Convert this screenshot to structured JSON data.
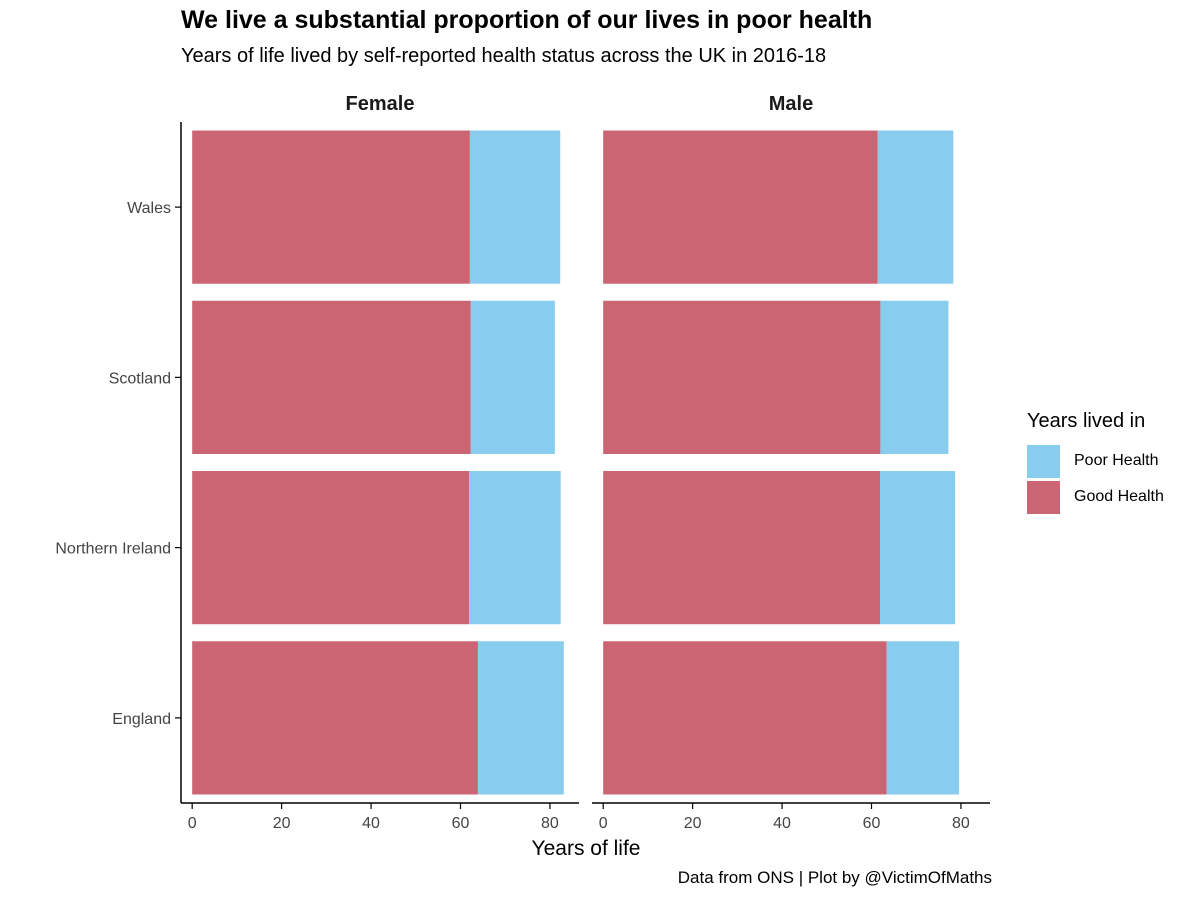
{
  "title": "We live a substantial proportion of our lives in poor health",
  "subtitle": "Years of life lived by self-reported health status across the UK in 2016-18",
  "caption": "Data from ONS | Plot by @VictimOfMaths",
  "colors": {
    "good": "#cb6574",
    "poor": "#89cdee",
    "axis": "#000000",
    "tick_label": "#444444"
  },
  "legend": {
    "title": "Years lived in",
    "position": "right",
    "items": [
      {
        "label": "Poor Health",
        "color": "#89cdee"
      },
      {
        "label": "Good Health",
        "color": "#cb6574"
      }
    ]
  },
  "chart_data": {
    "type": "bar",
    "orientation": "horizontal",
    "stacked": true,
    "xlabel": "Years of life",
    "xlim": [
      -2.5,
      86.5
    ],
    "xticks": [
      0,
      20,
      40,
      60,
      80
    ],
    "categories": [
      "Wales",
      "Scotland",
      "Northern Ireland",
      "England"
    ],
    "grid": false,
    "facets": [
      {
        "name": "Female",
        "series": [
          {
            "name": "Good Health",
            "values": [
              62.1,
              62.3,
              61.9,
              63.9
            ]
          },
          {
            "name": "Poor Health",
            "values": [
              20.2,
              18.8,
              20.5,
              19.2
            ]
          }
        ]
      },
      {
        "name": "Male",
        "series": [
          {
            "name": "Good Health",
            "values": [
              61.4,
              62.0,
              61.9,
              63.4
            ]
          },
          {
            "name": "Poor Health",
            "values": [
              16.9,
              15.2,
              16.8,
              16.2
            ]
          }
        ]
      }
    ]
  }
}
